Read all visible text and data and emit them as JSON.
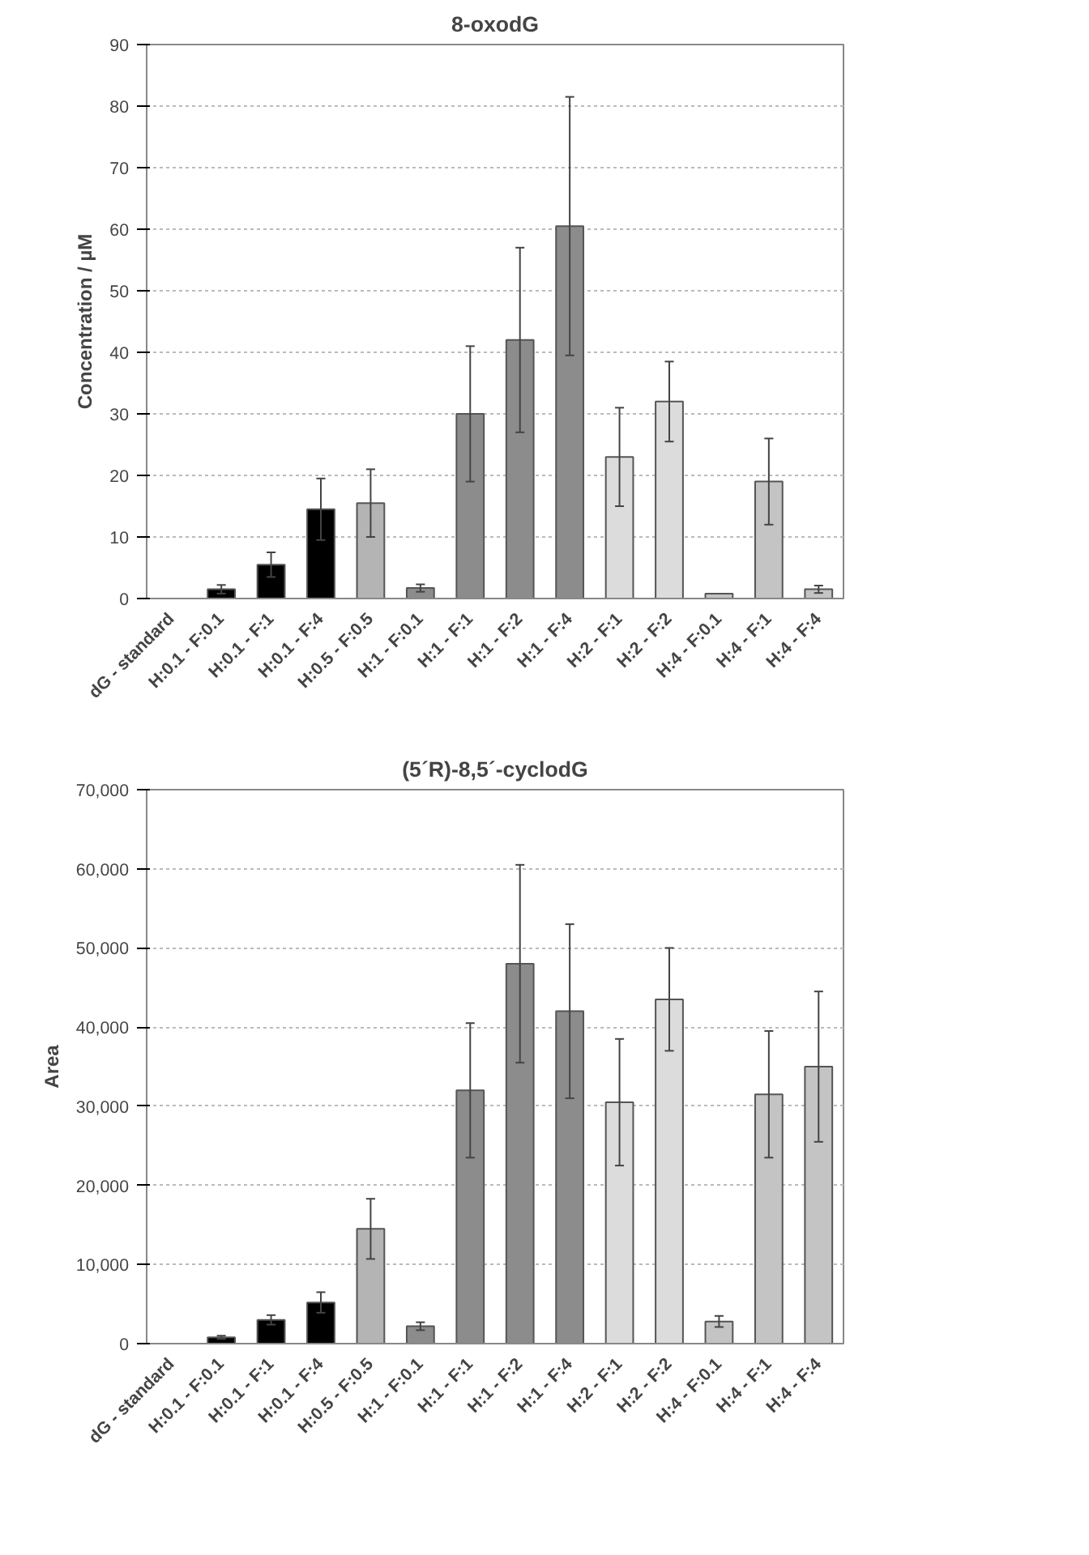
{
  "chart_data": [
    {
      "type": "bar",
      "title": "8-oxodG",
      "ylabel": "Concentration / µM",
      "categories": [
        "dG - standard",
        "H:0.1 - F:0.1",
        "H:0.1 - F:1",
        "H:0.1 - F:4",
        "H:0.5 - F:0.5",
        "H:1 - F:0.1",
        "H:1 - F:1",
        "H:1 - F:2",
        "H:1 - F:4",
        "H:2 - F:1",
        "H:2 - F:2",
        "H:4 - F:0.1",
        "H:4 - F:1",
        "H:4 - F:4"
      ],
      "values": [
        0,
        1.5,
        5.5,
        14.5,
        15.5,
        1.7,
        30,
        42,
        60.5,
        23,
        32,
        0.8,
        19,
        1.5
      ],
      "errors": [
        null,
        0.7,
        2,
        5,
        5.5,
        0.6,
        11,
        15,
        21,
        8,
        6.5,
        null,
        7,
        0.6
      ],
      "colors": [
        "#000000",
        "#000000",
        "#000000",
        "#000000",
        "#b4b4b4",
        "#8c8c8c",
        "#8c8c8c",
        "#8c8c8c",
        "#8c8c8c",
        "#dcdcdc",
        "#dcdcdc",
        "#c4c4c4",
        "#c4c4c4",
        "#c4c4c4"
      ],
      "ylim": [
        0,
        90
      ],
      "yticks": [
        0,
        10,
        20,
        30,
        40,
        50,
        60,
        70,
        80,
        90
      ],
      "grid": "y"
    },
    {
      "type": "bar",
      "title": "(5´R)-8,5´-cyclodG",
      "ylabel": "Area",
      "categories": [
        "dG - standard",
        "H:0.1 - F:0.1",
        "H:0.1 - F:1",
        "H:0.1 - F:4",
        "H:0.5 - F:0.5",
        "H:1 - F:0.1",
        "H:1 - F:1",
        "H:1 - F:2",
        "H:1 - F:4",
        "H:2 - F:1",
        "H:2 - F:2",
        "H:4 - F:0.1",
        "H:4 - F:1",
        "H:4 - F:4"
      ],
      "values": [
        0,
        800,
        3000,
        5200,
        14500,
        2200,
        32000,
        48000,
        42000,
        30500,
        43500,
        2800,
        31500,
        35000
      ],
      "errors": [
        null,
        200,
        600,
        1300,
        3800,
        500,
        8500,
        12500,
        11000,
        8000,
        6500,
        700,
        8000,
        9500
      ],
      "colors": [
        "#000000",
        "#000000",
        "#000000",
        "#000000",
        "#b4b4b4",
        "#8c8c8c",
        "#8c8c8c",
        "#8c8c8c",
        "#8c8c8c",
        "#dcdcdc",
        "#dcdcdc",
        "#c4c4c4",
        "#c4c4c4",
        "#c4c4c4"
      ],
      "ylim": [
        0,
        70000
      ],
      "yticks": [
        {
          "value": 0,
          "label": "0"
        },
        {
          "value": 10000,
          "label": "10,000"
        },
        {
          "value": 20000,
          "label": "20,000"
        },
        {
          "value": 30000,
          "label": "30,000"
        },
        {
          "value": 40000,
          "label": "40,000"
        },
        {
          "value": 50000,
          "label": "50,000"
        },
        {
          "value": 60000,
          "label": "60,000"
        },
        {
          "value": 70000,
          "label": "70,000"
        }
      ],
      "grid": "y"
    }
  ]
}
